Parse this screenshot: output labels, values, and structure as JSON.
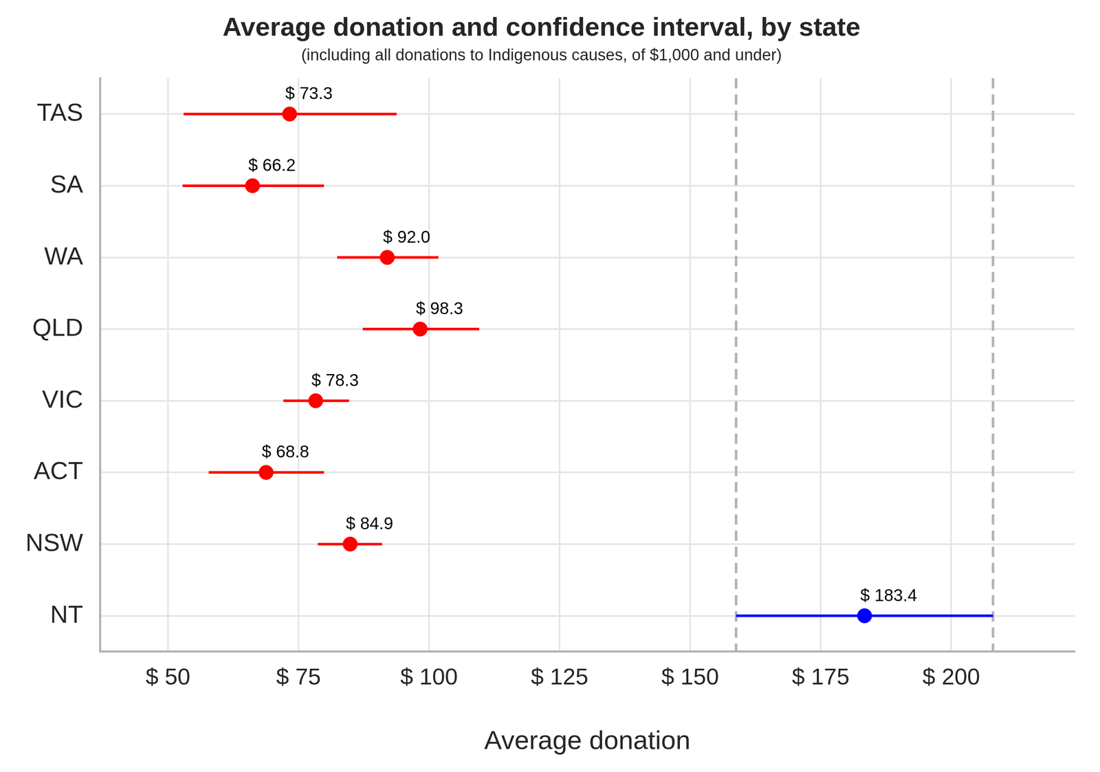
{
  "chart_data": {
    "type": "scatter",
    "title": "Average donation and confidence interval, by state",
    "subtitle": "(including all donations to Indigenous causes, of $1,000 and under)",
    "x_label": "Average donation",
    "orientation": "horizontal",
    "categories": [
      "TAS",
      "SA",
      "WA",
      "QLD",
      "VIC",
      "ACT",
      "NSW",
      "NT"
    ],
    "values": [
      73.3,
      66.2,
      92.0,
      98.3,
      78.3,
      68.8,
      84.9,
      183.4
    ],
    "value_labels": [
      "$ 73.3",
      "$ 66.2",
      "$ 92.0",
      "$ 98.3",
      "$ 78.3",
      "$ 68.8",
      "$ 84.9",
      "$ 183.4"
    ],
    "ci_low": [
      53.0,
      52.8,
      82.4,
      87.3,
      72.1,
      57.8,
      78.7,
      158.8
    ],
    "ci_high": [
      93.8,
      79.9,
      101.8,
      109.6,
      84.7,
      79.9,
      91.0,
      208.0
    ],
    "colors": [
      "#ff0000",
      "#ff0000",
      "#ff0000",
      "#ff0000",
      "#ff0000",
      "#ff0000",
      "#ff0000",
      "#0000ff"
    ],
    "vlines": [
      158.8,
      208.0
    ],
    "xlim": [
      37,
      223.6
    ],
    "xticks": [
      {
        "value": 50,
        "label": "$ 50"
      },
      {
        "value": 75,
        "label": "$ 75"
      },
      {
        "value": 100,
        "label": "$ 100"
      },
      {
        "value": 125,
        "label": "$ 125"
      },
      {
        "value": 150,
        "label": "$ 150"
      },
      {
        "value": 175,
        "label": "$ 175"
      },
      {
        "value": 200,
        "label": "$ 200"
      }
    ],
    "marker": "circle",
    "grid": true,
    "data_labels": true
  }
}
